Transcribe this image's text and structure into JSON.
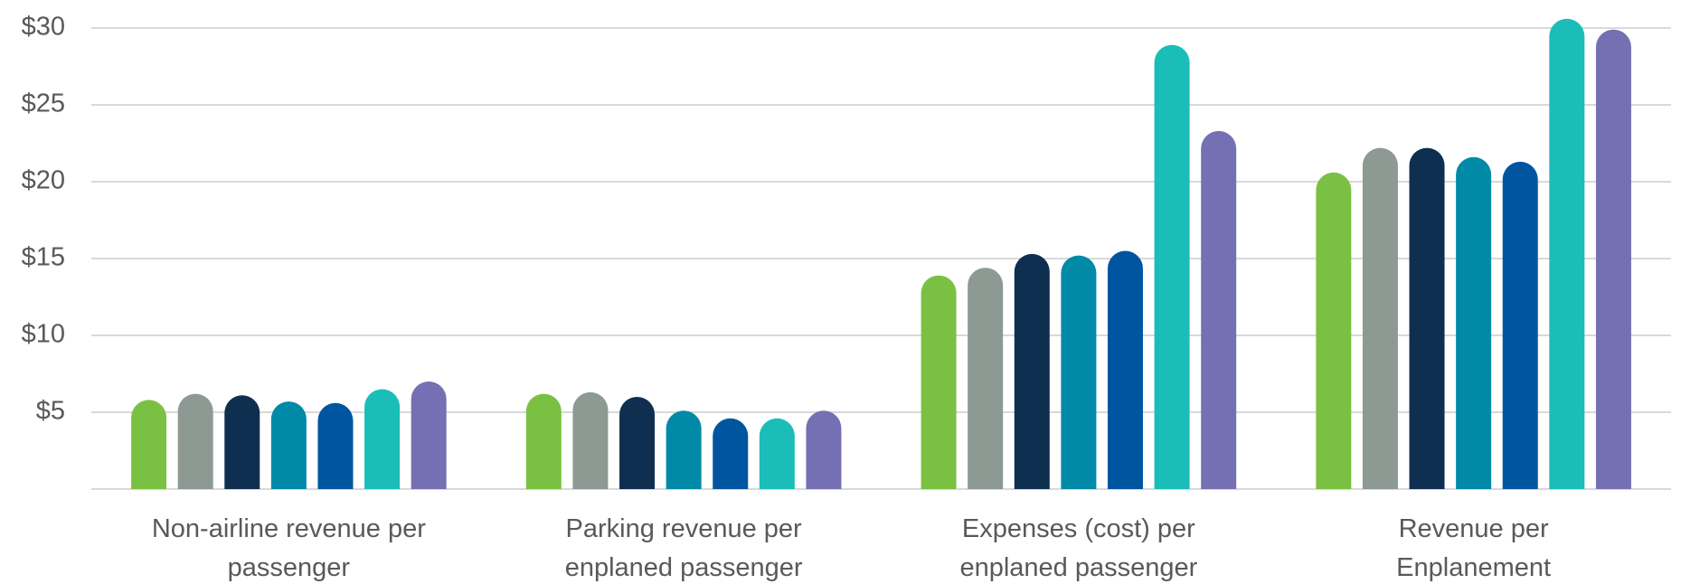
{
  "chart_data": {
    "type": "bar",
    "categories": [
      "Non-airline revenue per passenger",
      "Parking revenue per enplaned passenger",
      "Expenses (cost) per enplaned passenger",
      "Revenue per Enplanement"
    ],
    "series": [
      {
        "color": "#7ac143",
        "values": [
          5.8,
          6.2,
          13.9,
          20.6
        ]
      },
      {
        "color": "#8c9a93",
        "values": [
          6.2,
          6.3,
          14.4,
          22.2
        ]
      },
      {
        "color": "#0e2f50",
        "values": [
          6.1,
          6.0,
          15.3,
          22.2
        ]
      },
      {
        "color": "#008aa8",
        "values": [
          5.7,
          5.1,
          15.2,
          21.6
        ]
      },
      {
        "color": "#0055a0",
        "values": [
          5.6,
          4.6,
          15.5,
          21.3
        ]
      },
      {
        "color": "#1bbdb9",
        "values": [
          6.5,
          4.6,
          28.9,
          30.6
        ]
      },
      {
        "color": "#7570b3",
        "values": [
          7.0,
          5.1,
          23.3,
          29.9
        ]
      }
    ],
    "ylim": [
      0,
      31
    ],
    "yticks": [
      {
        "value": 5,
        "label": "$5"
      },
      {
        "value": 10,
        "label": "$10"
      },
      {
        "value": 15,
        "label": "$15"
      },
      {
        "value": 20,
        "label": "$20"
      },
      {
        "value": 25,
        "label": "$25"
      },
      {
        "value": 30,
        "label": "$30"
      }
    ],
    "grid": true
  }
}
